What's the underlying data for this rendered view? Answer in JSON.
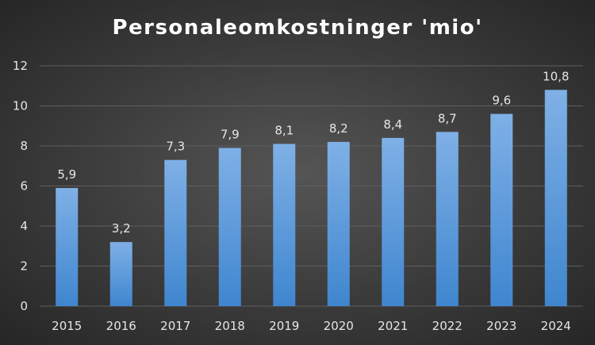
{
  "chart_data": {
    "type": "bar",
    "title": "Personaleomkostninger 'mio'",
    "categories": [
      "2015",
      "2016",
      "2017",
      "2018",
      "2019",
      "2020",
      "2021",
      "2022",
      "2023",
      "2024"
    ],
    "values": [
      5.9,
      3.2,
      7.3,
      7.9,
      8.1,
      8.2,
      8.4,
      8.7,
      9.6,
      10.8
    ],
    "data_labels": [
      "5,9",
      "3,2",
      "7,3",
      "7,9",
      "8,1",
      "8,2",
      "8,4",
      "8,7",
      "9,6",
      "10,8"
    ],
    "y_ticks": [
      0,
      2,
      4,
      6,
      8,
      10,
      12
    ],
    "xlabel": "",
    "ylabel": "",
    "ylim": [
      0,
      12
    ],
    "grid": true,
    "legend": "none",
    "colors": {
      "bar_top": "#7fb0e6",
      "bar_bottom": "#3f86cf",
      "grid": "#5e5e5e",
      "text": "#e6e6e6",
      "title": "#ffffff"
    }
  }
}
